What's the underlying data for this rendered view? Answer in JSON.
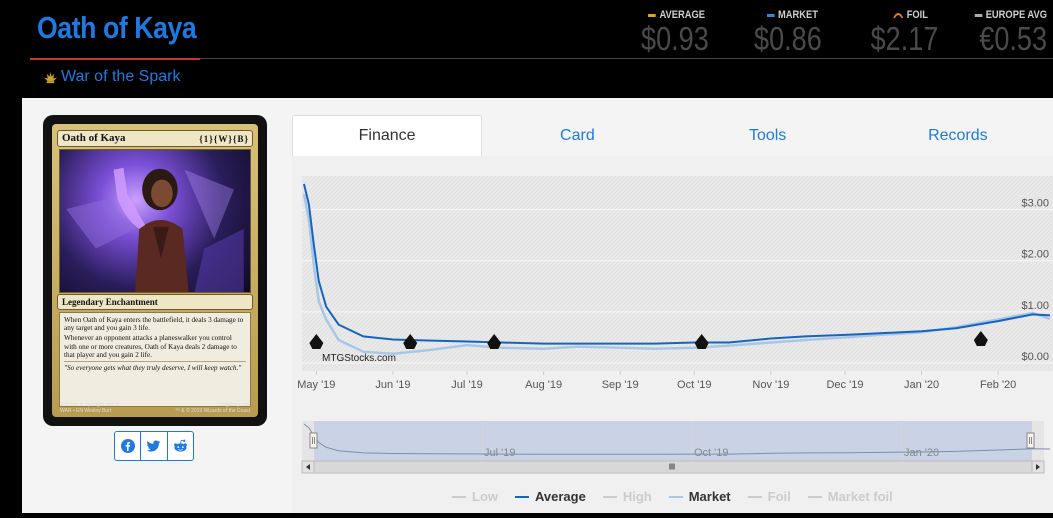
{
  "card": {
    "name": "Oath of Kaya",
    "set_name": "War of the Spark"
  },
  "prices": [
    {
      "label": "AVERAGE",
      "value": "$0.93",
      "color": "#e6a817"
    },
    {
      "label": "MARKET",
      "value": "$0.86",
      "color": "#2c8bd8"
    },
    {
      "label": "FOIL",
      "value": "$2.17",
      "color": "#e67e22"
    },
    {
      "label": "EUROPE AVG",
      "value": "€0.53",
      "color": "#aaaaaa"
    }
  ],
  "card_image": {
    "name": "Oath of Kaya",
    "mana": "{1}{W}{B}",
    "type_line": "Legendary Enchantment",
    "rules": [
      "When Oath of Kaya enters the battlefield, it deals 3 damage to any target and you gain 3 life.",
      "Whenever an opponent attacks a planeswalker you control with one or more creatures, Oath of Kaya deals 2 damage to that player and you gain 2 life."
    ],
    "flavor": "\"So everyone gets what they truly deserve, I will keep watch.\"",
    "footer_left": "209/264 R Spotlight: Act III",
    "footer_left2": "WAR • EN  Wesley Burt",
    "footer_right": "mtgstory.com",
    "footer_right2": "™ & © 2019 Wizards of the Coast"
  },
  "share": {
    "icons": [
      "facebook-icon",
      "twitter-icon",
      "reddit-icon"
    ]
  },
  "tabs": [
    {
      "label": "Finance",
      "active": true
    },
    {
      "label": "Card",
      "active": false
    },
    {
      "label": "Tools",
      "active": false
    },
    {
      "label": "Records",
      "active": false
    }
  ],
  "chart_data": {
    "type": "line",
    "watermark": "MTGStocks.com",
    "x_labels": [
      "May '19",
      "Jun '19",
      "Jul '19",
      "Aug '19",
      "Sep '19",
      "Oct '19",
      "Nov '19",
      "Dec '19",
      "Jan '20",
      "Feb '20"
    ],
    "y_labels": [
      "$3.00",
      "$2.00",
      "$1.00",
      "$0.00"
    ],
    "ylim": [
      0,
      3.5
    ],
    "navigator_labels": [
      "Jul '19",
      "Oct '19",
      "Jan '20"
    ],
    "series": [
      {
        "name": "Average",
        "color": "#1565c0",
        "x": [
          "2019-04-26",
          "2019-04-28",
          "2019-04-30",
          "2019-05-02",
          "2019-05-05",
          "2019-05-10",
          "2019-05-20",
          "2019-06-01",
          "2019-06-15",
          "2019-07-01",
          "2019-07-15",
          "2019-08-01",
          "2019-08-15",
          "2019-09-01",
          "2019-09-15",
          "2019-10-01",
          "2019-10-15",
          "2019-11-01",
          "2019-11-15",
          "2019-12-01",
          "2019-12-15",
          "2020-01-01",
          "2020-01-15",
          "2020-02-01",
          "2020-02-15",
          "2020-02-22"
        ],
        "y": [
          3.5,
          3.1,
          2.3,
          1.6,
          1.1,
          0.75,
          0.52,
          0.46,
          0.44,
          0.42,
          0.4,
          0.38,
          0.38,
          0.38,
          0.38,
          0.4,
          0.4,
          0.48,
          0.52,
          0.55,
          0.58,
          0.62,
          0.68,
          0.82,
          0.95,
          0.93
        ]
      },
      {
        "name": "Market",
        "color": "#a9c6e8",
        "x": [
          "2019-04-26",
          "2019-04-28",
          "2019-04-30",
          "2019-05-02",
          "2019-05-05",
          "2019-05-10",
          "2019-05-20",
          "2019-06-01",
          "2019-06-15",
          "2019-07-01",
          "2019-07-15",
          "2019-08-01",
          "2019-08-15",
          "2019-09-01",
          "2019-09-15",
          "2019-10-01",
          "2019-10-15",
          "2019-11-01",
          "2019-11-15",
          "2019-12-01",
          "2019-12-15",
          "2020-01-01",
          "2020-01-15",
          "2020-02-01",
          "2020-02-15",
          "2020-02-22"
        ],
        "y": [
          3.3,
          2.8,
          1.9,
          1.2,
          0.85,
          0.45,
          0.22,
          0.18,
          0.25,
          0.35,
          0.3,
          0.28,
          0.32,
          0.3,
          0.28,
          0.3,
          0.34,
          0.4,
          0.45,
          0.5,
          0.55,
          0.6,
          0.7,
          0.85,
          0.98,
          0.86
        ]
      }
    ],
    "legend": [
      {
        "name": "Low",
        "color": "#cccccc",
        "active": false
      },
      {
        "name": "Average",
        "color": "#1565c0",
        "active": true
      },
      {
        "name": "High",
        "color": "#cccccc",
        "active": false
      },
      {
        "name": "Market",
        "color": "#a9c6e8",
        "active": true
      },
      {
        "name": "Foil",
        "color": "#cccccc",
        "active": false
      },
      {
        "name": "Market foil",
        "color": "#cccccc",
        "active": false
      }
    ]
  }
}
